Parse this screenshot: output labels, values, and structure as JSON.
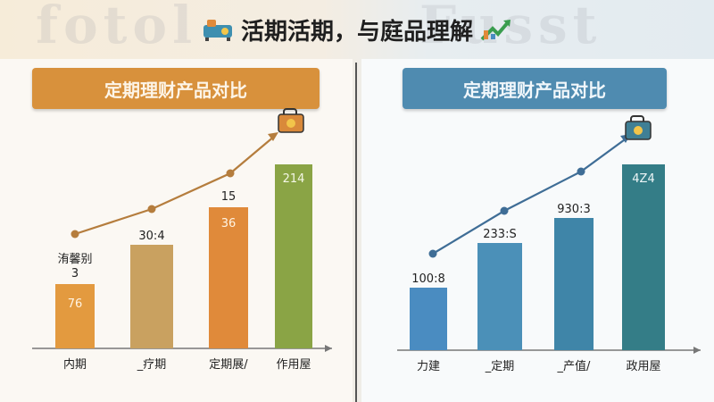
{
  "header": {
    "title": "活期活期，与庭品理解",
    "left_icon": "sun-lounger-icon",
    "right_icon": "growth-arrows-icon"
  },
  "watermark": {
    "left": "fotol",
    "right": "Fusst"
  },
  "colors": {
    "orange": "#d8913c",
    "bar_orange": "#e39a3f",
    "bar_olive": "#8aa445",
    "blue": "#4f8bb0",
    "bar_blue": "#4a8cc1",
    "bar_teal": "#347d87"
  },
  "chart_data": [
    {
      "type": "bar",
      "title": "定期理财产品对比",
      "categories": [
        "内期",
        "_疗期",
        "定期展/",
        "作用屋"
      ],
      "values": [
        76,
        30.4,
        36,
        214
      ],
      "value_labels": [
        "76",
        "30:4",
        "36",
        "214"
      ],
      "extra_labels": [
        "洧馨别\n3",
        "",
        "15",
        ""
      ],
      "bar_colors": [
        "#e39a3f",
        "#c9a160",
        "#e08a3a",
        "#8aa445"
      ],
      "trend_line": true,
      "trend_icon": "suitcase-coin-icon"
    },
    {
      "type": "bar",
      "title": "定期理财产品对比",
      "categories": [
        "力建",
        "_定期",
        "_产值/",
        "政用屋"
      ],
      "values": [
        100.8,
        233.8,
        930.3,
        424
      ],
      "value_labels": [
        "100:8",
        "233:S",
        "930:3",
        "4Z4"
      ],
      "bar_colors": [
        "#4a8cc1",
        "#4b90b8",
        "#3f85a8",
        "#347d87"
      ],
      "trend_line": true,
      "trend_icon": "suitcase-coin-icon"
    }
  ]
}
